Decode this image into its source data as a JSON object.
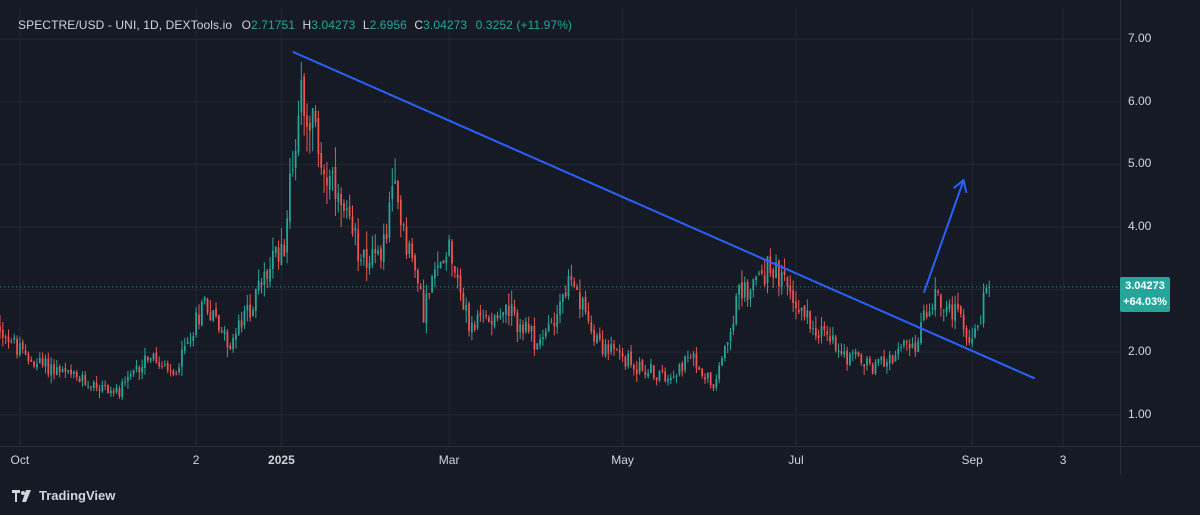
{
  "header": {
    "symbol": "SPECTRE/USD - UNI, 1D, DEXTools.io",
    "o_label": "O",
    "o_value": "2.71751",
    "h_label": "H",
    "h_value": "3.04273",
    "l_label": "L",
    "l_value": "2.6956",
    "c_label": "C",
    "c_value": "3.04273",
    "change": "0.3252 (+11.97%)"
  },
  "price_tag": {
    "price": "3.04273",
    "change": "+64.03%"
  },
  "branding": {
    "logo_text": "TradingView"
  },
  "colors": {
    "background": "#161a25",
    "up": "#26a69a",
    "down": "#ef5350",
    "trendline": "#2962ff",
    "grid": "#232733"
  },
  "chart_data": {
    "type": "candlestick",
    "title": "SPECTRE/USD - UNI, 1D, DEXTools.io",
    "ylim": [
      0.5,
      7.5
    ],
    "y_ticks": [
      "1.00",
      "2.00",
      "3.00",
      "4.00",
      "5.00",
      "6.00",
      "7.00"
    ],
    "y_tick_values": [
      1,
      2,
      3,
      4,
      5,
      6,
      7
    ],
    "x_ticks": [
      {
        "label": "Oct",
        "date": "2024-10-01",
        "bold": false
      },
      {
        "label": "2",
        "date": "2024-12-02",
        "bold": false
      },
      {
        "label": "2025",
        "date": "2025-01-01",
        "bold": true
      },
      {
        "label": "Mar",
        "date": "2025-03-01",
        "bold": false
      },
      {
        "label": "May",
        "date": "2025-05-01",
        "bold": false
      },
      {
        "label": "Jul",
        "date": "2025-07-01",
        "bold": false
      },
      {
        "label": "Sep",
        "date": "2025-09-01",
        "bold": false
      },
      {
        "label": "3",
        "date": "2025-10-03",
        "bold": false
      }
    ],
    "xlim": [
      "2024-09-24",
      "2025-10-23"
    ],
    "last_close": 3.04273,
    "close_path": [
      {
        "date": "2024-09-24",
        "close": 2.4
      },
      {
        "date": "2024-10-03",
        "close": 1.9
      },
      {
        "date": "2024-10-12",
        "close": 1.75
      },
      {
        "date": "2024-10-22",
        "close": 1.55
      },
      {
        "date": "2024-11-05",
        "close": 1.35
      },
      {
        "date": "2024-11-15",
        "close": 1.95
      },
      {
        "date": "2024-11-24",
        "close": 1.6
      },
      {
        "date": "2024-12-05",
        "close": 2.85
      },
      {
        "date": "2024-12-14",
        "close": 2.1
      },
      {
        "date": "2024-12-24",
        "close": 3.0
      },
      {
        "date": "2025-01-02",
        "close": 3.8
      },
      {
        "date": "2025-01-08",
        "close": 6.3
      },
      {
        "date": "2025-01-16",
        "close": 4.9
      },
      {
        "date": "2025-01-26",
        "close": 3.8
      },
      {
        "date": "2025-02-04",
        "close": 3.4
      },
      {
        "date": "2025-02-10",
        "close": 4.6
      },
      {
        "date": "2025-02-20",
        "close": 2.7
      },
      {
        "date": "2025-03-01",
        "close": 3.8
      },
      {
        "date": "2025-03-08",
        "close": 2.4
      },
      {
        "date": "2025-03-20",
        "close": 2.7
      },
      {
        "date": "2025-04-02",
        "close": 2.1
      },
      {
        "date": "2025-04-12",
        "close": 3.1
      },
      {
        "date": "2025-04-24",
        "close": 2.1
      },
      {
        "date": "2025-05-05",
        "close": 1.8
      },
      {
        "date": "2025-05-15",
        "close": 1.6
      },
      {
        "date": "2025-05-25",
        "close": 1.9
      },
      {
        "date": "2025-06-02",
        "close": 1.5
      },
      {
        "date": "2025-06-11",
        "close": 2.9
      },
      {
        "date": "2025-06-22",
        "close": 3.4
      },
      {
        "date": "2025-06-29",
        "close": 2.9
      },
      {
        "date": "2025-07-08",
        "close": 2.4
      },
      {
        "date": "2025-07-18",
        "close": 2.0
      },
      {
        "date": "2025-07-28",
        "close": 1.75
      },
      {
        "date": "2025-08-05",
        "close": 2.0
      },
      {
        "date": "2025-08-12",
        "close": 2.1
      },
      {
        "date": "2025-08-18",
        "close": 2.9
      },
      {
        "date": "2025-08-26",
        "close": 2.6
      },
      {
        "date": "2025-09-01",
        "close": 2.2
      },
      {
        "date": "2025-09-07",
        "close": 3.04
      }
    ],
    "annotations": {
      "trendline": {
        "start": {
          "date": "2025-01-05",
          "price": 6.8
        },
        "end": {
          "date": "2025-09-23",
          "price": 1.58
        }
      },
      "arrow": {
        "start": {
          "date": "2025-08-15",
          "price": 2.95
        },
        "end": {
          "date": "2025-08-29",
          "price": 4.75
        }
      }
    },
    "grid": true
  }
}
